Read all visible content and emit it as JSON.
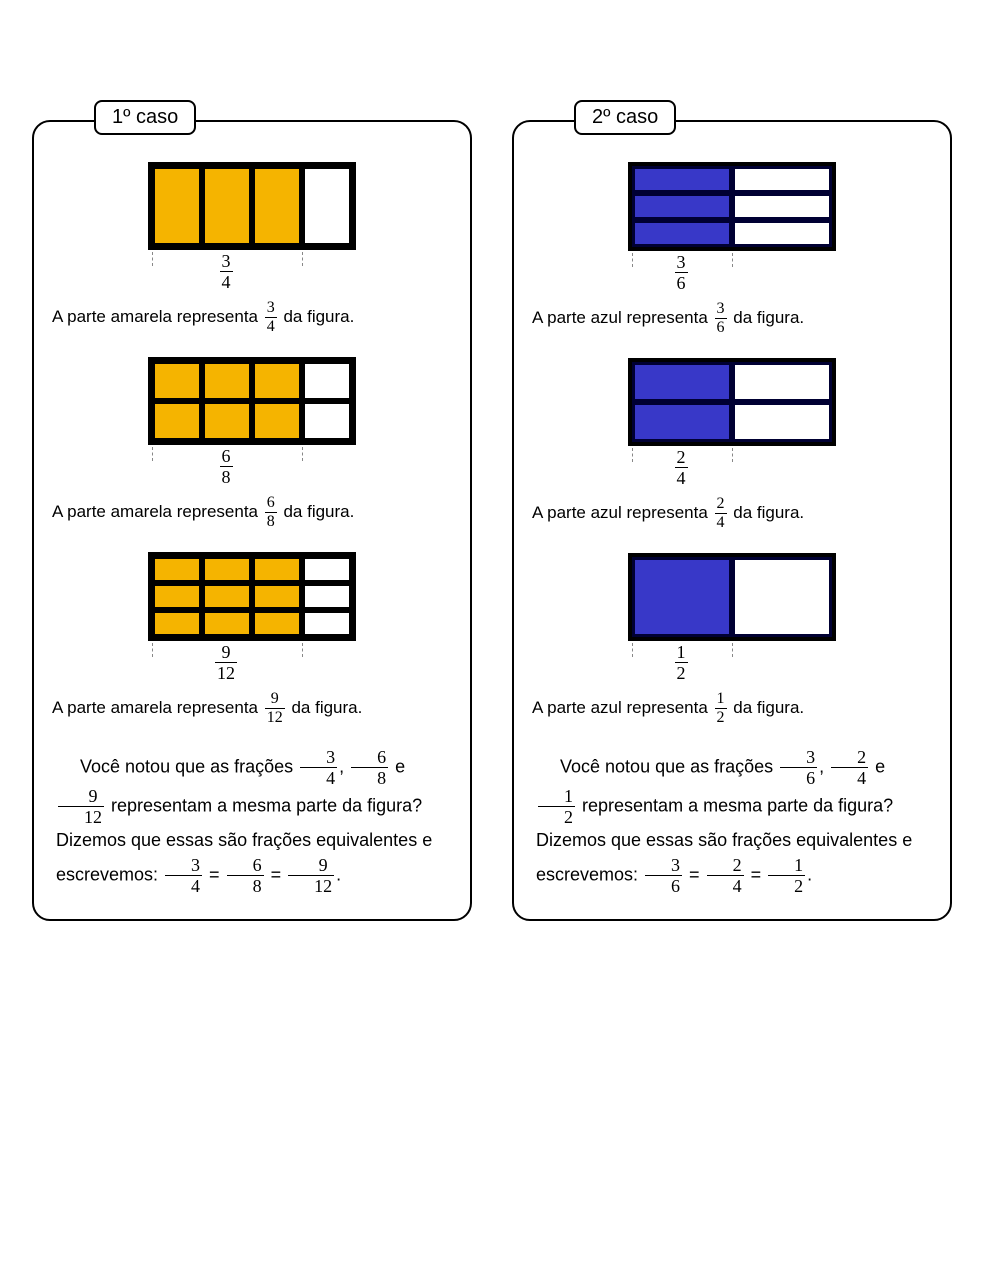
{
  "colors": {
    "yellow": "#f5b400",
    "blue": "#3838c8",
    "border": "#000000",
    "background": "#ffffff"
  },
  "case1": {
    "title": "1º caso",
    "items": [
      {
        "fraction": {
          "n": 3,
          "d": 4
        },
        "grid": {
          "cols": 4,
          "rows": 1,
          "shaded_cols": 3
        },
        "caption_pre": "A parte amarela representa ",
        "caption_post": " da figura."
      },
      {
        "fraction": {
          "n": 6,
          "d": 8
        },
        "grid": {
          "cols": 4,
          "rows": 2,
          "shaded_cols": 3
        },
        "caption_pre": "A parte amarela representa ",
        "caption_post": " da figura."
      },
      {
        "fraction": {
          "n": 9,
          "d": 12
        },
        "grid": {
          "cols": 4,
          "rows": 3,
          "shaded_cols": 3
        },
        "caption_pre": "A parte amarela representa ",
        "caption_post": " da figura."
      }
    ],
    "summary": {
      "lead": "Você notou que as frações ",
      "f1": {
        "n": 3,
        "d": 4
      },
      "f2": {
        "n": 6,
        "d": 8
      },
      "f3": {
        "n": 9,
        "d": 12
      },
      "mid": " representam a mesma parte da figura? Dizemos que essas são frações equivalentes e escrevemos: ",
      "sep_comma": ", ",
      "sep_e": " e ",
      "eq": " = ",
      "period": "."
    }
  },
  "case2": {
    "title": "2º caso",
    "items": [
      {
        "fraction": {
          "n": 3,
          "d": 6
        },
        "grid": {
          "cols": 2,
          "rows": 3,
          "shaded_cols": 1
        },
        "caption_pre": "A parte azul representa ",
        "caption_post": " da figura."
      },
      {
        "fraction": {
          "n": 2,
          "d": 4
        },
        "grid": {
          "cols": 2,
          "rows": 2,
          "shaded_cols": 1
        },
        "caption_pre": "A parte azul representa ",
        "caption_post": " da figura."
      },
      {
        "fraction": {
          "n": 1,
          "d": 2
        },
        "grid": {
          "cols": 2,
          "rows": 1,
          "shaded_cols": 1
        },
        "caption_pre": "A parte azul representa ",
        "caption_post": " da figura."
      }
    ],
    "summary": {
      "lead": "Você notou que as frações ",
      "f1": {
        "n": 3,
        "d": 6
      },
      "f2": {
        "n": 2,
        "d": 4
      },
      "f3": {
        "n": 1,
        "d": 2
      },
      "mid": " representam a mesma parte da figura? Dizemos que essas são frações equivalentes e escrevemos: ",
      "sep_comma": ", ",
      "sep_e": " e ",
      "eq": " = ",
      "period": "."
    }
  }
}
